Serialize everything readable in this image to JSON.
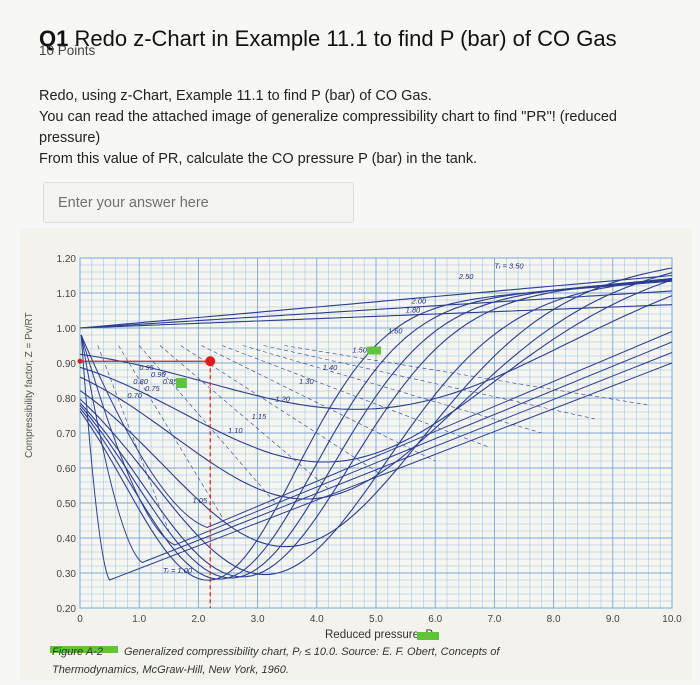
{
  "question": {
    "number": "Q1",
    "title": "Redo z-Chart in Example 11.1 to find P (bar) of CO Gas",
    "points": "10 Points",
    "lines": [
      "Redo, using z-Chart, Example 11.1 to find P (bar) of CO Gas.",
      "You can read the attached image of generalize compressibility chart to find \"PR\"! (reduced pressure)",
      "From this value of PR, calculate the CO pressure P (bar) in the tank."
    ]
  },
  "answer": {
    "placeholder": "Enter your answer here",
    "value": ""
  },
  "figure": {
    "y_axis_ticks": [
      "1.20",
      "1.10",
      "1.00",
      "0.90",
      "0.80",
      "0.70",
      "0.60",
      "0.50",
      "0.40",
      "0.30",
      "0.20"
    ],
    "x_axis_ticks": [
      "0",
      "1.0",
      "2.0",
      "3.0",
      "4.0",
      "5.0",
      "6.0",
      "7.0",
      "8.0",
      "9.0",
      "10.0"
    ],
    "x_label": "Reduced pressure, P",
    "y_label": "Compressibility factor, Z = Pv/RT",
    "curve_labels": [
      "Tᵣ = 3.50",
      "2.50",
      "2.00",
      "1.80",
      "1.60",
      "1.50",
      "1.40",
      "1.30",
      "1.20",
      "1.15",
      "1.10",
      "1.05",
      "Tᵣ = 1.00",
      "0.95",
      "0.90",
      "0.85",
      "0.80",
      "0.75",
      "0.70"
    ],
    "caption_label": "Figure A-2",
    "caption_text": "Generalized compressibility chart, Pᵣ ≤ 10.0. Source: E. F. Obert, Concepts of",
    "caption_text2": "Thermodynamics, McGraw-Hill, New York, 1960.",
    "marker_point": {
      "pr": 2.2,
      "z": 0.905
    },
    "colors": {
      "curve": "#2a3d8f",
      "grid": "#7aa7d8",
      "marker": "#e01b1b",
      "highlight": "#5fc43a"
    }
  }
}
